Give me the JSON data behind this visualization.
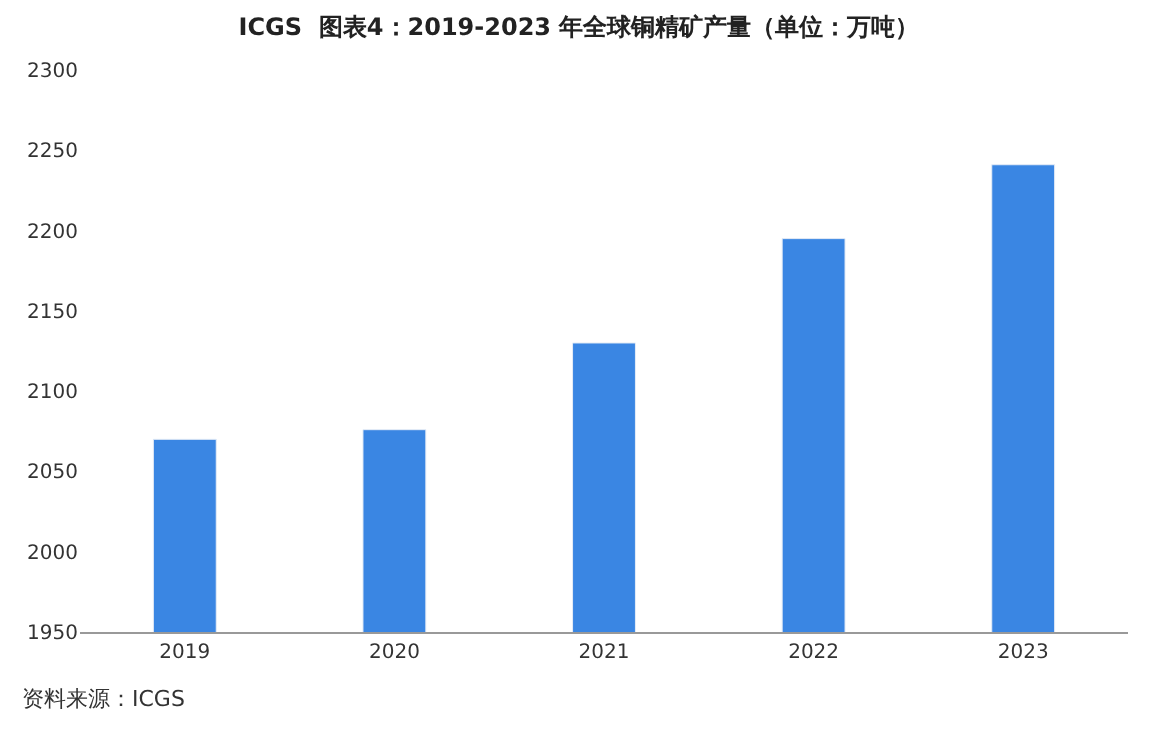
{
  "chart_data": {
    "type": "bar",
    "title": "ICGS  图表4：2019-2023 年全球铜精矿产量（单位：万吨）",
    "categories": [
      "2019",
      "2020",
      "2021",
      "2022",
      "2023"
    ],
    "values": [
      2070,
      2076,
      2130,
      2195,
      2241
    ],
    "color": "#3a86e3",
    "ylim": [
      1950,
      2300
    ],
    "yticks": [
      1950,
      2000,
      2050,
      2100,
      2150,
      2200,
      2250,
      2300
    ],
    "grid": false,
    "annotations": [
      "资料来源：ICGS"
    ]
  }
}
